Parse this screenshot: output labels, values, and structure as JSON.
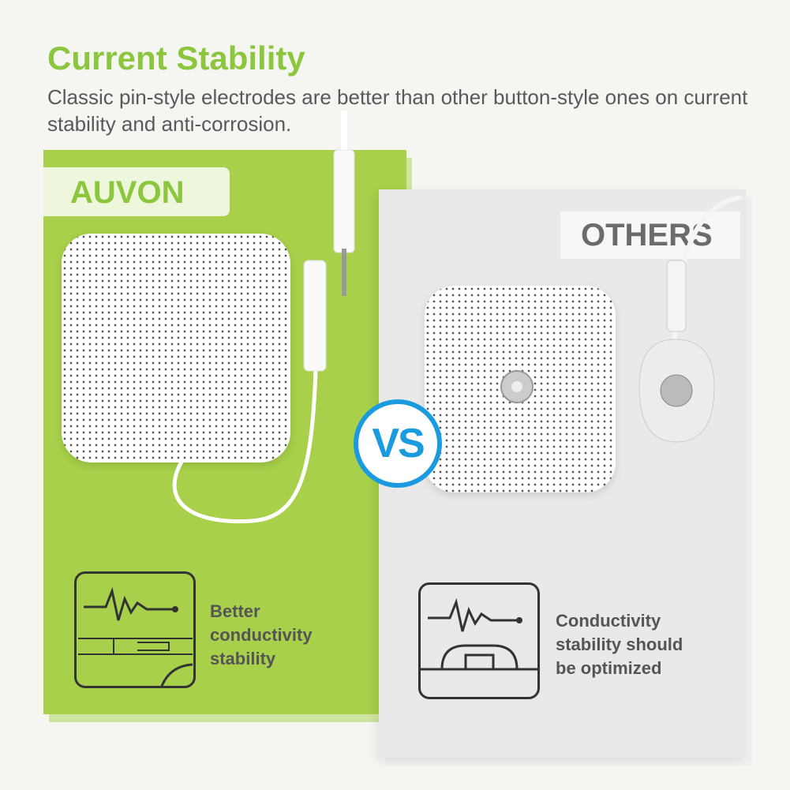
{
  "header": {
    "title": "Current Stability",
    "subtitle": "Classic pin-style electrodes are better than other button-style ones on current stability and anti-corrosion."
  },
  "left": {
    "brand": "AUVON",
    "feature": [
      "Better",
      "conductivity",
      "stability"
    ],
    "icon": "pin-connector-pulse-icon",
    "color": "#a8d04a"
  },
  "right": {
    "brand": "OTHERS",
    "feature": [
      "Conductivity",
      "stability should",
      "be optimized"
    ],
    "icon": "snap-button-pulse-icon",
    "color": "#e9e9e9"
  },
  "vs": {
    "label": "VS",
    "color": "#1a9be0"
  }
}
